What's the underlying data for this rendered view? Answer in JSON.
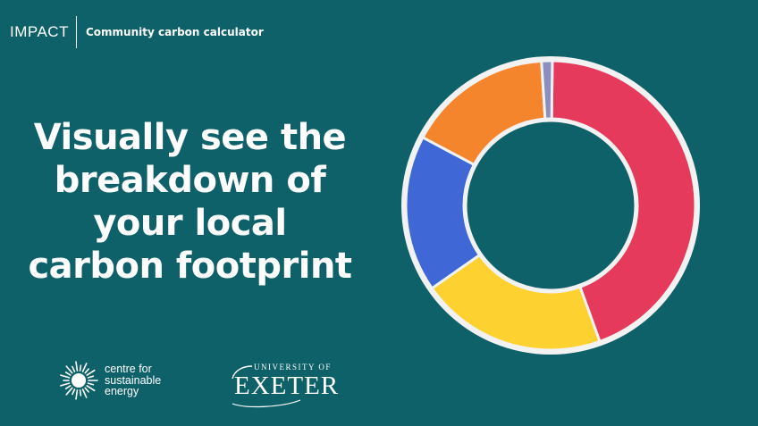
{
  "header": {
    "brand": "IMPACT",
    "subtitle": "Community carbon calculator"
  },
  "headline": {
    "lines": [
      "Visually see the",
      "breakdown of",
      "your local",
      "carbon footprint"
    ]
  },
  "logos": {
    "cse": {
      "lines": [
        "centre for",
        "sustainable",
        "energy"
      ],
      "icon": "sun-icon"
    },
    "exeter": {
      "top": "UNIVERSITY OF",
      "main": "EXETER"
    }
  },
  "chart_data": {
    "type": "pie",
    "variant": "donut",
    "title": "",
    "slices": [
      {
        "value": 0.443,
        "color": "#e63a5c"
      },
      {
        "value": 0.208,
        "color": "#fdd12f"
      },
      {
        "value": 0.175,
        "color": "#3f68d6"
      },
      {
        "value": 0.162,
        "color": "#f5852d"
      },
      {
        "value": 0.012,
        "color": "#8a8fc0"
      }
    ]
  },
  "colors": {
    "background": "#0f6169",
    "text": "#ffffff",
    "donut_outline": "#f2f2f2"
  }
}
